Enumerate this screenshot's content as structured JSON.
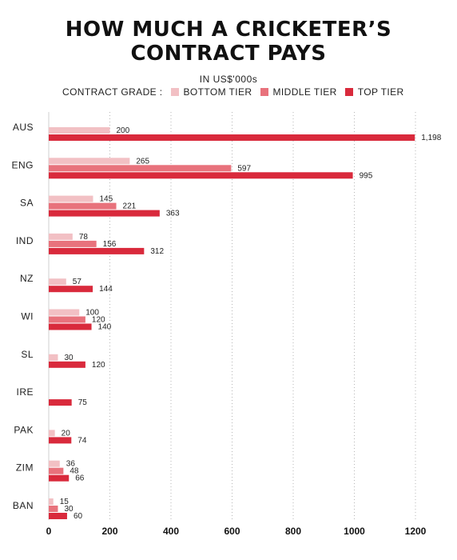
{
  "chart_data": {
    "type": "bar",
    "orientation": "horizontal",
    "title": [
      "HOW MUCH A CRICKETER’S",
      "CONTRACT PAYS"
    ],
    "subtitle": "IN US$'000s",
    "legend_label": "CONTRACT GRADE :",
    "categories": [
      "AUS",
      "ENG",
      "SA",
      "IND",
      "NZ",
      "WI",
      "SL",
      "IRE",
      "PAK",
      "ZIM",
      "BAN"
    ],
    "series": [
      {
        "name": "BOTTOM TIER",
        "color": "#f2c0c4",
        "values": [
          200,
          265,
          145,
          78,
          57,
          100,
          30,
          null,
          20,
          36,
          15
        ],
        "labels": [
          "200",
          "265",
          "145",
          "78",
          "57",
          "100",
          "30",
          null,
          "20",
          "36",
          "15"
        ]
      },
      {
        "name": "MIDDLE TIER",
        "color": "#e8727c",
        "values": [
          null,
          597,
          221,
          156,
          null,
          120,
          null,
          null,
          null,
          48,
          30
        ],
        "labels": [
          null,
          "597",
          "221",
          "156",
          null,
          "120",
          null,
          null,
          null,
          "48",
          "30"
        ]
      },
      {
        "name": "TOP TIER",
        "color": "#d92a3c",
        "values": [
          1198,
          995,
          363,
          312,
          144,
          140,
          120,
          75,
          74,
          66,
          60
        ],
        "labels": [
          "1,198",
          "995",
          "363",
          "312",
          "144",
          "140",
          "120",
          "75",
          "74",
          "66",
          "60"
        ]
      }
    ],
    "xlim": [
      0,
      1200
    ],
    "xticks": [
      0,
      200,
      400,
      600,
      800,
      1000,
      1200
    ],
    "grid": "vertical dotted",
    "legend_position": "top"
  }
}
